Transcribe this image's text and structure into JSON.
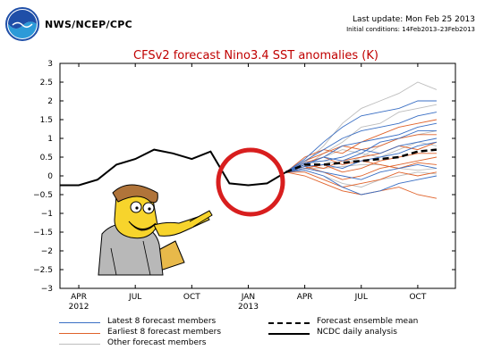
{
  "header": {
    "agency": "NWS/NCEP/CPC",
    "last_update": "Last update: Mon Feb 25 2013",
    "initial_conditions": "Initial conditions: 14Feb2013–23Feb2013"
  },
  "chart_data": {
    "type": "line",
    "title": "CFSv2 forecast Nino3.4 SST anomalies (K)",
    "xlabel": "",
    "ylabel": "",
    "ylim": [
      -3,
      3
    ],
    "yticks": [
      3,
      2.5,
      2,
      1.5,
      1,
      0.5,
      0,
      -0.5,
      -1,
      -1.5,
      -2,
      -2.5,
      -3
    ],
    "ytick_labels": [
      "3",
      "2.5",
      "2",
      "1.5",
      "1",
      "0.5",
      "0",
      "−0.5",
      "−1",
      "−1.5",
      "−2",
      "−2.5",
      "−3"
    ],
    "xticks": [
      {
        "month": 3,
        "label": "APR",
        "sublabel": "2012"
      },
      {
        "month": 6,
        "label": "JUL",
        "sublabel": ""
      },
      {
        "month": 9,
        "label": "OCT",
        "sublabel": ""
      },
      {
        "month": 12,
        "label": "JAN",
        "sublabel": "2013"
      },
      {
        "month": 15,
        "label": "APR",
        "sublabel": ""
      },
      {
        "month": 18,
        "label": "JUL",
        "sublabel": ""
      },
      {
        "month": 21,
        "label": "OCT",
        "sublabel": ""
      }
    ],
    "xlim": [
      2,
      23
    ],
    "grid": false,
    "colors": {
      "observed": "#000000",
      "ensemble_mean": "#000000",
      "latest": "#3a6fc4",
      "earliest": "#e0622a",
      "other": "#bdbdbd",
      "circle": "#d81e1e",
      "title": "#c00000"
    },
    "series": [
      {
        "name": "NCDC daily analysis",
        "x": [
          2,
          3,
          4,
          5,
          6,
          7,
          8,
          9,
          10,
          11,
          12,
          13,
          14
        ],
        "values": [
          -0.25,
          -0.25,
          -0.1,
          0.3,
          0.45,
          0.7,
          0.6,
          0.45,
          0.65,
          -0.2,
          -0.25,
          -0.2,
          0.1
        ]
      },
      {
        "name": "Forecast ensemble mean",
        "x": [
          14,
          15,
          16,
          17,
          18,
          19,
          20,
          21,
          22
        ],
        "values": [
          0.1,
          0.3,
          0.3,
          0.35,
          0.4,
          0.45,
          0.5,
          0.65,
          0.7
        ]
      }
    ],
    "members": {
      "other": [
        [
          0.1,
          0.35,
          0.8,
          1.4,
          1.8,
          2.0,
          2.2,
          2.5,
          2.3
        ],
        [
          0.1,
          0.25,
          0.6,
          0.9,
          1.3,
          1.4,
          1.7,
          1.8,
          1.9
        ],
        [
          0.1,
          0.2,
          0.2,
          0.25,
          0.3,
          0.3,
          0.2,
          0.15,
          0.2
        ],
        [
          0.1,
          0.15,
          0.0,
          -0.2,
          -0.3,
          -0.1,
          0.0,
          0.1,
          0.05
        ],
        [
          0.1,
          0.3,
          0.4,
          0.3,
          0.5,
          0.8,
          1.0,
          1.1,
          1.2
        ],
        [
          0.1,
          0.3,
          0.5,
          0.7,
          0.6,
          0.5,
          0.7,
          0.9,
          0.8
        ]
      ],
      "latest": [
        [
          0.1,
          0.45,
          0.9,
          1.3,
          1.6,
          1.7,
          1.8,
          2.0,
          2.0
        ],
        [
          0.1,
          0.4,
          0.7,
          1.0,
          1.2,
          1.3,
          1.4,
          1.6,
          1.7
        ],
        [
          0.1,
          0.3,
          0.5,
          0.8,
          0.9,
          1.0,
          1.1,
          1.3,
          1.4
        ],
        [
          0.1,
          0.35,
          0.4,
          0.5,
          0.7,
          0.6,
          0.8,
          0.9,
          1.0
        ],
        [
          0.1,
          0.25,
          0.3,
          0.2,
          0.4,
          0.5,
          0.6,
          0.8,
          0.9
        ],
        [
          0.1,
          0.2,
          0.1,
          0.0,
          -0.1,
          0.1,
          0.2,
          0.3,
          0.2
        ],
        [
          0.1,
          0.15,
          0.0,
          -0.3,
          -0.5,
          -0.4,
          -0.2,
          -0.1,
          0.0
        ],
        [
          0.1,
          0.3,
          0.5,
          0.4,
          0.6,
          0.9,
          1.0,
          1.2,
          1.2
        ]
      ],
      "earliest": [
        [
          0.1,
          0.5,
          0.7,
          0.6,
          0.9,
          1.1,
          1.3,
          1.4,
          1.5
        ],
        [
          0.1,
          0.4,
          0.6,
          0.8,
          0.7,
          0.8,
          1.0,
          1.1,
          1.1
        ],
        [
          0.1,
          0.3,
          0.2,
          0.4,
          0.5,
          0.6,
          0.8,
          0.7,
          0.9
        ],
        [
          0.1,
          0.2,
          0.3,
          0.1,
          0.2,
          0.4,
          0.5,
          0.6,
          0.6
        ],
        [
          0.1,
          0.25,
          0.1,
          -0.1,
          0.0,
          0.2,
          0.3,
          0.4,
          0.5
        ],
        [
          0.1,
          0.1,
          -0.1,
          -0.3,
          -0.2,
          -0.1,
          0.1,
          0.0,
          0.1
        ],
        [
          0.1,
          0.0,
          -0.2,
          -0.4,
          -0.5,
          -0.4,
          -0.3,
          -0.5,
          -0.6
        ],
        [
          0.1,
          0.35,
          0.5,
          0.3,
          0.4,
          0.3,
          0.2,
          0.35,
          0.3
        ]
      ]
    }
  },
  "legend": {
    "latest": "Latest 8 forecast members",
    "earliest": "Earliest 8 forecast members",
    "other": "Other forecast members",
    "mean": "Forecast ensemble mean",
    "observed": "NCDC daily analysis"
  }
}
